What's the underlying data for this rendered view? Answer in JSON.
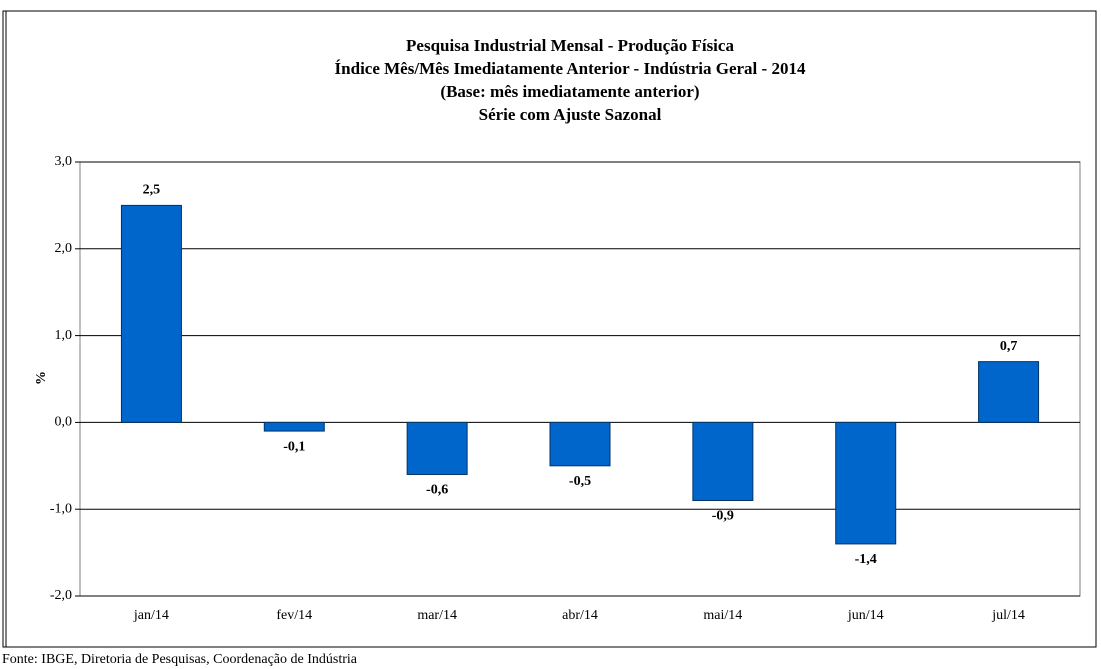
{
  "chart_data": {
    "type": "bar",
    "title": [
      "Pesquisa Industrial Mensal - Produção Física",
      "Índice Mês/Mês Imediatamente Anterior - Indústria Geral - 2014",
      "(Base: mês imediatamente anterior)",
      "Série com Ajuste Sazonal"
    ],
    "y_label": "%",
    "categories": [
      "jan/14",
      "fev/14",
      "mar/14",
      "abr/14",
      "mai/14",
      "jun/14",
      "jul/14"
    ],
    "values": [
      2.5,
      -0.1,
      -0.6,
      -0.5,
      -0.9,
      -1.4,
      0.7
    ],
    "value_labels": [
      "2,5",
      "-0,1",
      "-0,6",
      "-0,5",
      "-0,9",
      "-1,4",
      "0,7"
    ],
    "color": "#0066cc",
    "ylim": [
      -2,
      3
    ],
    "yticks": [
      {
        "value": -2,
        "label": "-2,0"
      },
      {
        "value": -1,
        "label": "-1,0"
      },
      {
        "value": 0,
        "label": "0,0"
      },
      {
        "value": 1,
        "label": "1,0"
      },
      {
        "value": 2,
        "label": "2,0"
      },
      {
        "value": 3,
        "label": "3,0"
      }
    ],
    "grid": true,
    "source": "Fonte: IBGE, Diretoria de Pesquisas, Coordenação de Indústria"
  }
}
